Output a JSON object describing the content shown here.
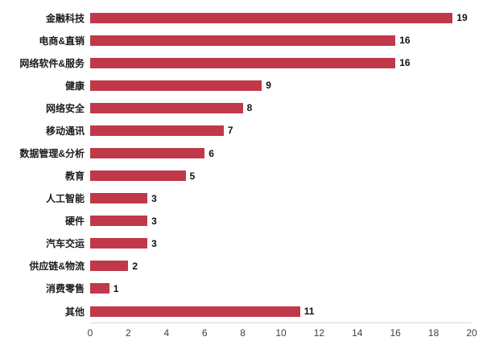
{
  "chart_data": {
    "type": "bar",
    "orientation": "horizontal",
    "title": "",
    "xlabel": "",
    "ylabel": "",
    "categories": [
      "金融科技",
      "电商&直销",
      "网络软件&服务",
      "健康",
      "网络安全",
      "移动通讯",
      "数据管理&分析",
      "教育",
      "人工智能",
      "硬件",
      "汽车交运",
      "供应链&物流",
      "消费零售",
      "其他"
    ],
    "values": [
      19,
      16,
      16,
      9,
      8,
      7,
      6,
      5,
      3,
      3,
      3,
      2,
      1,
      11
    ],
    "data_labels": [
      19,
      16,
      16,
      9,
      8,
      7,
      6,
      5,
      3,
      3,
      3,
      2,
      1,
      11
    ],
    "xlim": [
      0,
      20
    ],
    "xticks": [
      0,
      2,
      4,
      6,
      8,
      10,
      12,
      14,
      16,
      18,
      20
    ],
    "grid": false,
    "legend": false,
    "bar_color": "#c0394a",
    "label_color": "#1a1a1a",
    "tick_color": "#3f3f3f"
  }
}
